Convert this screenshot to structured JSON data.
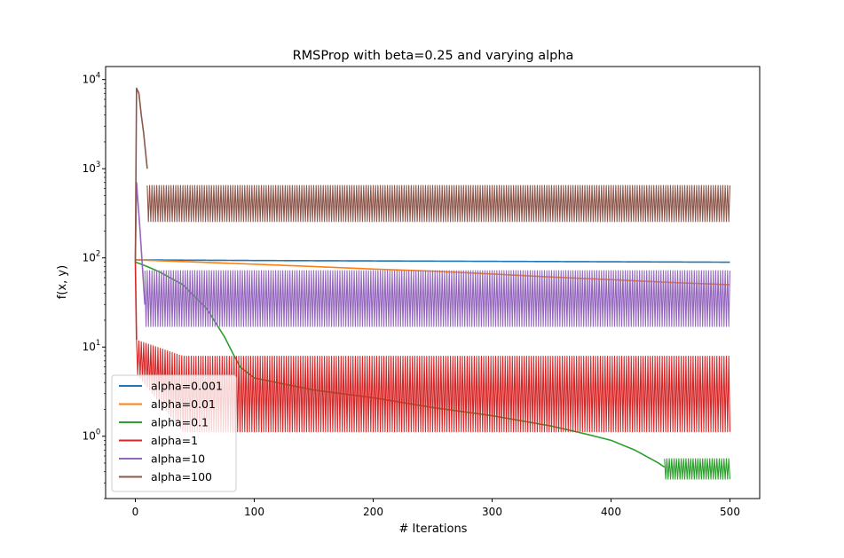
{
  "chart_data": {
    "type": "line",
    "title": "RMSProp with beta=0.25 and varying alpha",
    "xlabel": "# Iterations",
    "ylabel": "f(x, y)",
    "xlim": [
      -25,
      525
    ],
    "ylim": [
      0.2,
      14000
    ],
    "yscale": "log",
    "xticks": [
      0,
      100,
      200,
      300,
      400,
      500
    ],
    "xtick_labels": [
      "0",
      "100",
      "200",
      "300",
      "400",
      "500"
    ],
    "yticks": [
      1,
      10,
      100,
      1000,
      10000
    ],
    "ytick_labels": [
      {
        "base": "10",
        "exp": "0"
      },
      {
        "base": "10",
        "exp": "1"
      },
      {
        "base": "10",
        "exp": "2"
      },
      {
        "base": "10",
        "exp": "3"
      },
      {
        "base": "10",
        "exp": "4"
      }
    ],
    "grid": false,
    "legend_position": "lower-left",
    "series": [
      {
        "name": "alpha=0.001",
        "color": "#1f77b4",
        "kind": "smooth",
        "points": [
          [
            0,
            95
          ],
          [
            100,
            93.5
          ],
          [
            200,
            92.5
          ],
          [
            300,
            91.5
          ],
          [
            400,
            90.5
          ],
          [
            500,
            89.5
          ]
        ]
      },
      {
        "name": "alpha=0.01",
        "color": "#ff7f0e",
        "kind": "smooth",
        "points": [
          [
            0,
            95
          ],
          [
            50,
            90
          ],
          [
            100,
            85
          ],
          [
            150,
            80
          ],
          [
            200,
            75
          ],
          [
            250,
            71
          ],
          [
            300,
            66
          ],
          [
            350,
            61
          ],
          [
            400,
            57
          ],
          [
            450,
            53
          ],
          [
            500,
            50
          ]
        ]
      },
      {
        "name": "alpha=0.1",
        "color": "#2ca02c",
        "kind": "smooth_then_band",
        "points": [
          [
            0,
            90
          ],
          [
            10,
            80
          ],
          [
            20,
            70
          ],
          [
            40,
            50
          ],
          [
            60,
            27
          ],
          [
            75,
            13
          ],
          [
            82,
            8.5
          ],
          [
            88,
            6
          ],
          [
            100,
            4.5
          ],
          [
            150,
            3.3
          ],
          [
            200,
            2.7
          ],
          [
            250,
            2.1
          ],
          [
            300,
            1.7
          ],
          [
            350,
            1.3
          ],
          [
            380,
            1.05
          ],
          [
            400,
            0.9
          ],
          [
            420,
            0.7
          ],
          [
            440,
            0.5
          ],
          [
            445,
            0.45
          ]
        ],
        "band": {
          "start": 445,
          "end": 500,
          "low": 0.33,
          "high": 0.56
        }
      },
      {
        "name": "alpha=1",
        "color": "#d62728",
        "kind": "band",
        "lead": [
          [
            0,
            90
          ],
          [
            1,
            12
          ]
        ],
        "band": {
          "start": 1,
          "end": 500,
          "low_start": 5,
          "low": 1.12,
          "high_start": 12,
          "high": 7.9,
          "settle": 40
        }
      },
      {
        "name": "alpha=10",
        "color": "#9467bd",
        "kind": "band",
        "lead": [
          [
            0,
            90
          ],
          [
            1,
            700
          ],
          [
            4,
            200
          ],
          [
            8,
            30
          ]
        ],
        "band": {
          "start": 8,
          "end": 500,
          "low": 17,
          "high": 72
        }
      },
      {
        "name": "alpha=100",
        "color": "#8c564b",
        "kind": "band",
        "lead": [
          [
            0,
            90
          ],
          [
            1,
            8000
          ],
          [
            3,
            7000
          ],
          [
            5,
            4000
          ],
          [
            7,
            2500
          ],
          [
            10,
            1000
          ]
        ],
        "band": {
          "start": 10,
          "end": 500,
          "low": 255,
          "high": 650
        }
      }
    ]
  }
}
